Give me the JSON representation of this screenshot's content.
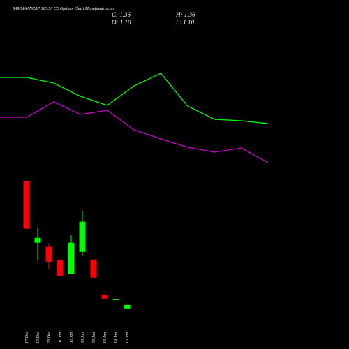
{
  "header": {
    "title": "SAMMAANCAP 167.50 CE Options Chart Munafasutra.com",
    "close_label": "C: 1.36",
    "high_label": "H: 1.36",
    "open_label": "O: 1.10",
    "low_label": "L: 1.10"
  },
  "chart_data": [
    {
      "type": "candlestick",
      "categories": [
        "17 Dec",
        "19 Dec",
        "23 Dec",
        "01 Jan",
        "02 Jan",
        "03 Jan",
        "09 Jan",
        "13 Jan",
        "14 Jan",
        "16 Jan"
      ],
      "open": [
        10.56,
        5.99,
        5.68,
        4.69,
        3.65,
        5.31,
        4.74,
        2.14,
        1.72,
        1.1
      ],
      "high": [
        10.56,
        7.13,
        5.94,
        4.69,
        6.56,
        8.33,
        4.74,
        2.14,
        1.78,
        1.36
      ],
      "low": [
        7.03,
        4.69,
        4.01,
        3.49,
        3.65,
        5.0,
        3.39,
        1.83,
        1.72,
        1.1
      ],
      "close": [
        7.03,
        6.35,
        4.58,
        3.54,
        5.99,
        7.55,
        3.39,
        1.83,
        1.78,
        1.36
      ],
      "up_color": "#00ff00",
      "down_color": "#ff0000",
      "ylim": [
        0,
        12
      ]
    },
    {
      "type": "line",
      "categories": [
        null,
        null,
        null,
        null,
        null,
        null,
        null,
        null,
        null,
        null,
        null
      ],
      "series": [
        {
          "color": "#00ff00",
          "values": [
            69.5,
            69.5,
            65.5,
            56,
            49.5,
            63.5,
            72.5,
            49,
            39.5,
            38.5,
            36.5
          ]
        },
        {
          "color": "#cc00cc",
          "values": [
            41,
            41,
            52,
            43,
            46,
            32,
            25.5,
            19.5,
            16,
            19,
            8.5
          ]
        }
      ],
      "ylim": [
        0,
        100
      ]
    }
  ]
}
